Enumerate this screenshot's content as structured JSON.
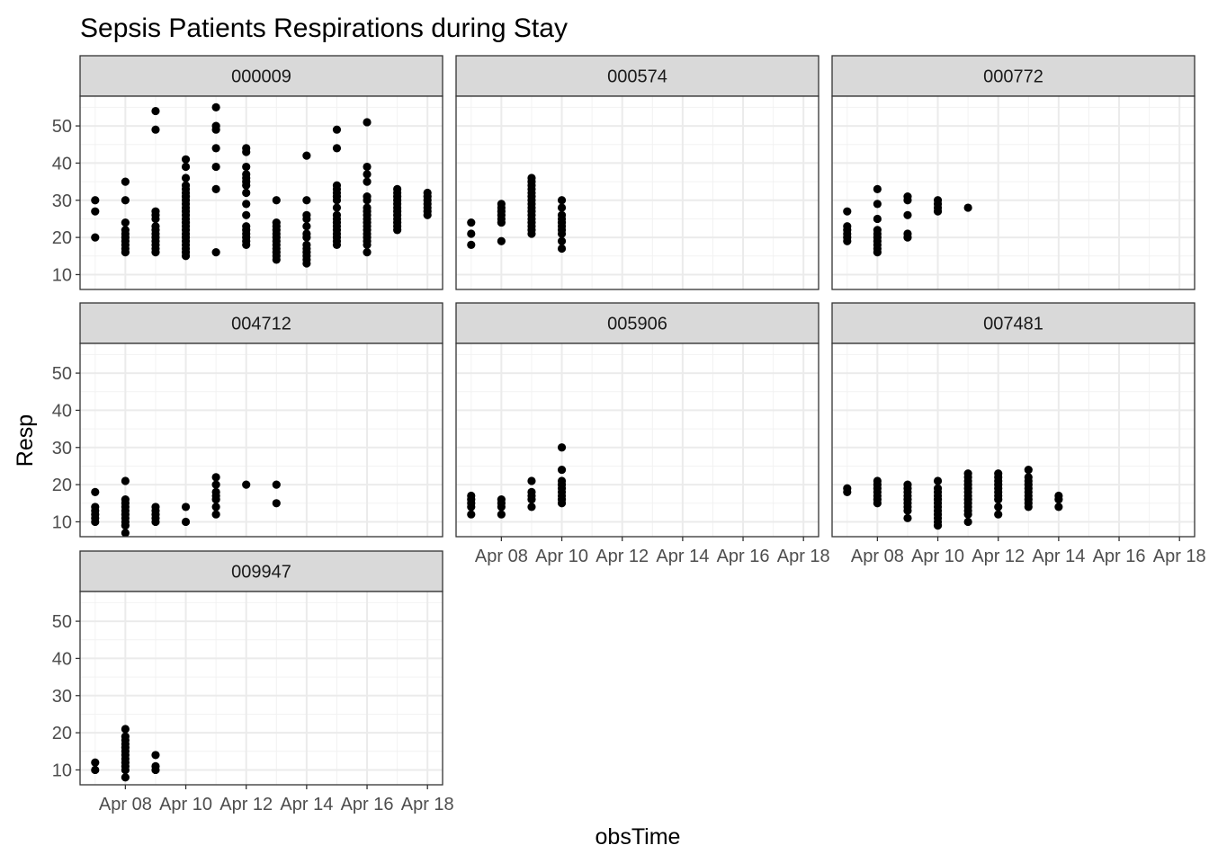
{
  "chart_data": {
    "type": "scatter",
    "title": "Sepsis Patients Respirations during Stay",
    "xlabel": "obsTime",
    "ylabel": "Resp",
    "x_ticks": [
      "Apr 08",
      "Apr 10",
      "Apr 12",
      "Apr 14",
      "Apr 16",
      "Apr 18"
    ],
    "x_tick_days": [
      8,
      10,
      12,
      14,
      16,
      18
    ],
    "y_ticks": [
      10,
      20,
      30,
      40,
      50
    ],
    "xlim": [
      6.5,
      18.5
    ],
    "ylim": [
      6,
      58
    ],
    "grid": true,
    "point_color": "#000000",
    "panels": [
      {
        "id": "000009",
        "points": [
          {
            "x": 7,
            "y": [
              20,
              27,
              30
            ]
          },
          {
            "x": 8,
            "y": [
              16,
              17,
              18,
              19,
              20,
              21,
              22,
              24,
              30,
              35
            ]
          },
          {
            "x": 9,
            "y": [
              16,
              17,
              18,
              19,
              20,
              21,
              22,
              23,
              25,
              26,
              27,
              49,
              54
            ]
          },
          {
            "x": 10,
            "y": [
              15,
              16,
              17,
              18,
              19,
              20,
              21,
              22,
              23,
              24,
              25,
              26,
              27,
              28,
              29,
              30,
              31,
              32,
              33,
              34,
              36,
              39,
              41
            ]
          },
          {
            "x": 11,
            "y": [
              16,
              33,
              39,
              44,
              49,
              50,
              55
            ]
          },
          {
            "x": 12,
            "y": [
              18,
              19,
              20,
              21,
              22,
              23,
              26,
              29,
              32,
              34,
              35,
              36,
              37,
              39,
              43,
              44
            ]
          },
          {
            "x": 13,
            "y": [
              14,
              15,
              16,
              17,
              18,
              19,
              20,
              21,
              22,
              23,
              24,
              30
            ]
          },
          {
            "x": 14,
            "y": [
              13,
              14,
              15,
              16,
              17,
              18,
              20,
              21,
              23,
              25,
              26,
              30,
              42
            ]
          },
          {
            "x": 15,
            "y": [
              18,
              19,
              20,
              21,
              22,
              23,
              24,
              25,
              26,
              28,
              30,
              31,
              32,
              33,
              34,
              44,
              49
            ]
          },
          {
            "x": 16,
            "y": [
              16,
              18,
              19,
              20,
              21,
              22,
              23,
              24,
              25,
              26,
              27,
              28,
              30,
              31,
              35,
              37,
              39,
              51
            ]
          },
          {
            "x": 17,
            "y": [
              22,
              23,
              24,
              25,
              26,
              27,
              28,
              29,
              30,
              31,
              32,
              33
            ]
          },
          {
            "x": 18,
            "y": [
              26,
              27,
              28,
              29,
              30,
              31,
              32
            ]
          }
        ]
      },
      {
        "id": "000574",
        "points": [
          {
            "x": 7,
            "y": [
              18,
              21,
              24
            ]
          },
          {
            "x": 8,
            "y": [
              19,
              24,
              25,
              26,
              27,
              28,
              29
            ]
          },
          {
            "x": 9,
            "y": [
              21,
              22,
              23,
              24,
              25,
              26,
              27,
              28,
              29,
              30,
              31,
              32,
              33,
              34,
              35,
              36
            ]
          },
          {
            "x": 10,
            "y": [
              17,
              19,
              21,
              22,
              23,
              24,
              25,
              26,
              28,
              30
            ]
          }
        ]
      },
      {
        "id": "000772",
        "points": [
          {
            "x": 7,
            "y": [
              19,
              20,
              21,
              22,
              23,
              27
            ]
          },
          {
            "x": 8,
            "y": [
              16,
              17,
              18,
              19,
              20,
              21,
              22,
              25,
              29,
              33
            ]
          },
          {
            "x": 9,
            "y": [
              20,
              21,
              26,
              30,
              31
            ]
          },
          {
            "x": 10,
            "y": [
              27,
              28,
              29,
              30
            ]
          },
          {
            "x": 11,
            "y": [
              28
            ]
          }
        ]
      },
      {
        "id": "004712",
        "points": [
          {
            "x": 7,
            "y": [
              10,
              11,
              12,
              13,
              14,
              18
            ]
          },
          {
            "x": 8,
            "y": [
              7,
              9,
              10,
              11,
              12,
              13,
              14,
              15,
              16,
              21
            ]
          },
          {
            "x": 9,
            "y": [
              10,
              11,
              12,
              13,
              14
            ]
          },
          {
            "x": 10,
            "y": [
              10,
              14
            ]
          },
          {
            "x": 11,
            "y": [
              12,
              14,
              16,
              17,
              18,
              20,
              22
            ]
          },
          {
            "x": 12,
            "y": [
              20
            ]
          },
          {
            "x": 13,
            "y": [
              15,
              20
            ]
          }
        ]
      },
      {
        "id": "005906",
        "points": [
          {
            "x": 7,
            "y": [
              12,
              14,
              15,
              16,
              17
            ]
          },
          {
            "x": 8,
            "y": [
              12,
              14,
              15,
              16
            ]
          },
          {
            "x": 9,
            "y": [
              14,
              16,
              17,
              18,
              21
            ]
          },
          {
            "x": 10,
            "y": [
              15,
              16,
              17,
              18,
              19,
              20,
              21,
              24,
              30
            ]
          }
        ]
      },
      {
        "id": "007481",
        "points": [
          {
            "x": 7,
            "y": [
              18,
              19
            ]
          },
          {
            "x": 8,
            "y": [
              15,
              16,
              17,
              18,
              19,
              20,
              21
            ]
          },
          {
            "x": 9,
            "y": [
              11,
              13,
              14,
              15,
              16,
              17,
              18,
              19,
              20
            ]
          },
          {
            "x": 10,
            "y": [
              9,
              10,
              11,
              12,
              13,
              14,
              15,
              16,
              17,
              18,
              19,
              21
            ]
          },
          {
            "x": 11,
            "y": [
              10,
              12,
              13,
              14,
              15,
              16,
              17,
              18,
              19,
              20,
              21,
              22,
              23
            ]
          },
          {
            "x": 12,
            "y": [
              12,
              14,
              16,
              17,
              18,
              19,
              20,
              21,
              22,
              23
            ]
          },
          {
            "x": 13,
            "y": [
              14,
              15,
              16,
              17,
              18,
              19,
              20,
              21,
              22,
              24
            ]
          },
          {
            "x": 14,
            "y": [
              14,
              16,
              17
            ]
          }
        ]
      },
      {
        "id": "009947",
        "points": [
          {
            "x": 7,
            "y": [
              10,
              12
            ]
          },
          {
            "x": 8,
            "y": [
              8,
              10,
              11,
              12,
              13,
              14,
              15,
              16,
              17,
              18,
              19,
              21
            ]
          },
          {
            "x": 9,
            "y": [
              10,
              11,
              14
            ]
          }
        ]
      }
    ]
  }
}
